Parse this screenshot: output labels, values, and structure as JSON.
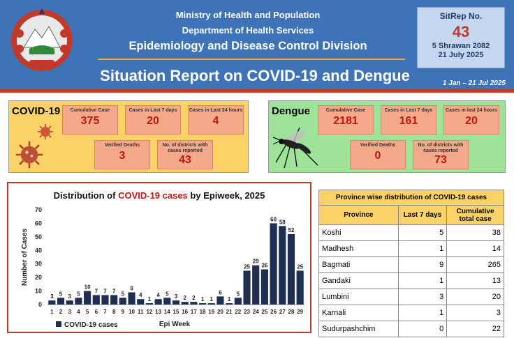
{
  "header": {
    "ministry": "Ministry of Health and Population",
    "department": "Department of Health Services",
    "division": "Epidemiology and Disease Control Division",
    "title": "Situation Report on COVID-19 and Dengue",
    "period": "1 Jan – 21 Jul 2025",
    "colors": {
      "band": "#3f73b8",
      "accent_rule": "#f0a830",
      "bottom_rule": "#c0392b"
    }
  },
  "sitrep": {
    "label": "SitRep No.",
    "number": "43",
    "nepali_date": "5 Shrawan 2082",
    "date": "21 July 2025"
  },
  "covid": {
    "title": "COVID-19",
    "cumulative_label": "Cumulative Case",
    "cumulative_value": "375",
    "last7_label": "Cases in Last 7 days",
    "last7_value": "20",
    "last24_label": "Cases in Last 24 hours",
    "last24_value": "4",
    "deaths_label": "Verified Deaths",
    "deaths_value": "3",
    "districts_label": "No. of districts with cases reported",
    "districts_value": "43",
    "icon": "virus-icon"
  },
  "dengue": {
    "title": "Dengue",
    "cumulative_label": "Cumulative Case",
    "cumulative_value": "2181",
    "last7_label": "Cases in Last 7 days",
    "last7_value": "161",
    "last24_label": "Cases in last 24 hours",
    "last24_value": "20",
    "deaths_label": "Verified Deaths",
    "deaths_value": "0",
    "districts_label": "No. of districts with cases reported",
    "districts_value": "73",
    "icon": "mosquito-icon"
  },
  "chart_data": {
    "type": "bar",
    "title_prefix": "Distribution of ",
    "title_highlight": "COVID-19 cases",
    "title_suffix": " by Epiweek, 2025",
    "xlabel": "Epi Week",
    "ylabel": "Number of Cases",
    "ylim": [
      0,
      70
    ],
    "yticks": [
      0,
      10,
      20,
      30,
      40,
      50,
      60,
      70
    ],
    "categories": [
      "1",
      "2",
      "3",
      "4",
      "5",
      "6",
      "7",
      "8",
      "9",
      "10",
      "11",
      "12",
      "13",
      "14",
      "15",
      "16",
      "17",
      "18",
      "19",
      "20",
      "21",
      "22",
      "23",
      "24",
      "25",
      "26",
      "27",
      "28",
      "29"
    ],
    "series": [
      {
        "name": "COVID-19 cases",
        "values": [
          3,
          5,
          3,
          5,
          10,
          7,
          7,
          7,
          5,
          9,
          4,
          1,
          4,
          5,
          3,
          2,
          2,
          1,
          1,
          6,
          1,
          5,
          25,
          29,
          26,
          60,
          58,
          52,
          25
        ]
      }
    ],
    "bar_color": "#1f2f52",
    "legend_position": "bottom-left",
    "grid": false
  },
  "province_table": {
    "caption": "Province wise distribution of COVID-19 cases",
    "headers": [
      "Province",
      "Last 7 days",
      "Cumulative total case"
    ],
    "rows": [
      [
        "Koshi",
        "5",
        "38"
      ],
      [
        "Madhesh",
        "1",
        "14"
      ],
      [
        "Bagmati",
        "9",
        "265"
      ],
      [
        "Gandaki",
        "1",
        "13"
      ],
      [
        "Lumbini",
        "3",
        "20"
      ],
      [
        "Karnali",
        "1",
        "3"
      ],
      [
        "Sudurpashchim",
        "0",
        "22"
      ]
    ]
  }
}
